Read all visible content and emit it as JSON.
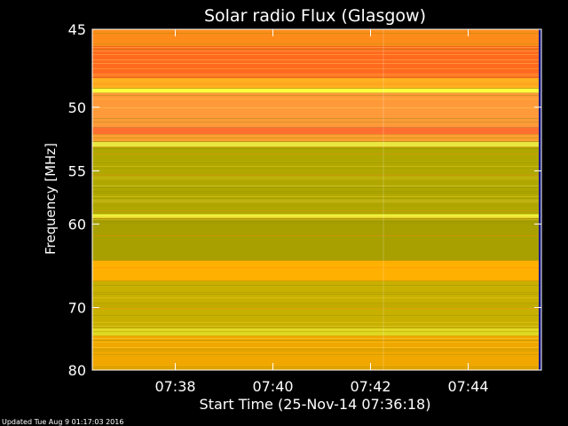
{
  "chart_data": {
    "type": "heatmap",
    "title": "Solar radio Flux (Glasgow)",
    "xlabel": "Start Time (25-Nov-14 07:36:18)",
    "ylabel": "Frequency [MHz]",
    "x_ticks": [
      "07:38",
      "07:40",
      "07:42",
      "07:44"
    ],
    "x_tick_minutes": [
      1.7,
      3.7,
      5.7,
      7.7
    ],
    "xlim_minutes": [
      0,
      9.2
    ],
    "y_ticks": [
      45,
      50,
      55,
      60,
      70,
      80
    ],
    "ylim": [
      45,
      80
    ],
    "y_scale": "reciprocal",
    "grid": false,
    "bands": [
      {
        "f0": 45.0,
        "f1": 46.0,
        "color": "#ff8c1a"
      },
      {
        "f0": 46.0,
        "f1": 48.0,
        "color": "#ff6a1f"
      },
      {
        "f0": 48.0,
        "f1": 48.7,
        "color": "#ffb020"
      },
      {
        "f0": 48.7,
        "f1": 49.0,
        "color": "#ffff40"
      },
      {
        "f0": 49.0,
        "f1": 51.5,
        "color": "#ff9a3a"
      },
      {
        "f0": 51.5,
        "f1": 52.0,
        "color": "#ff7030"
      },
      {
        "f0": 52.0,
        "f1": 52.6,
        "color": "#ffa030"
      },
      {
        "f0": 52.6,
        "f1": 53.0,
        "color": "#e8e840"
      },
      {
        "f0": 53.0,
        "f1": 59.0,
        "color": "#b0a800"
      },
      {
        "f0": 59.0,
        "f1": 59.4,
        "color": "#ffff40"
      },
      {
        "f0": 59.4,
        "f1": 64.0,
        "color": "#a8a000"
      },
      {
        "f0": 64.0,
        "f1": 66.5,
        "color": "#ffb000"
      },
      {
        "f0": 66.5,
        "f1": 73.0,
        "color": "#c8b000"
      },
      {
        "f0": 73.0,
        "f1": 74.2,
        "color": "#e0d820"
      },
      {
        "f0": 74.2,
        "f1": 80.0,
        "color": "#f0a800"
      }
    ],
    "colors": {
      "background": "#000000",
      "text": "#ffffff",
      "edge_strip": "#1a1a8c"
    }
  },
  "footer": {
    "updated": "Updated Tue Aug  9 01:17:03 2016"
  }
}
